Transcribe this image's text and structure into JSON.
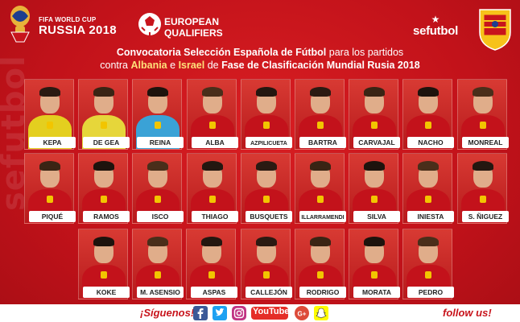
{
  "header": {
    "wc_line1": "FIFA WORLD CUP",
    "wc_line2": "RUSSIA 2018",
    "eq_line1": "EUROPEAN",
    "eq_line2": "QUALIFIERS",
    "brand": "sefutbol",
    "crest_text": "RFEF"
  },
  "title": {
    "l1_part1": "Convocatoria Selección Española de Fútbol",
    "l1_part2": "para los partidos",
    "l2_part1": "contra",
    "l2_part2": "Albania",
    "l2_part3": "e",
    "l2_part4": "Israel",
    "l2_part5": "de",
    "l2_part6": "Fase de Clasificación Mundial Rusia 2018"
  },
  "watermark": "sefutbol",
  "players": {
    "row1": [
      "KEPA",
      "DE GEA",
      "REINA",
      "ALBA",
      "AZPILICUETA",
      "BARTRA",
      "CARVAJAL",
      "NACHO",
      "MONREAL"
    ],
    "row2": [
      "PIQUÉ",
      "RAMOS",
      "ISCO",
      "THIAGO",
      "BUSQUETS",
      "ILLARRAMENDI",
      "SILVA",
      "INIESTA",
      "S. ÑIGUEZ"
    ],
    "row3": [
      "KOKE",
      "M. ASENSIO",
      "ASPAS",
      "CALLEJÓN",
      "RODRIGO",
      "MORATA",
      "PEDRO"
    ]
  },
  "footer": {
    "follow_es": "¡Síguenos!",
    "follow_en": "follow us!",
    "youtube": "YouTube",
    "icons": [
      "facebook-icon",
      "twitter-icon",
      "instagram-icon",
      "youtube-icon",
      "google-plus-icon",
      "snapchat-icon"
    ]
  },
  "colors": {
    "background": "#c8141c",
    "accent_yellow": "#ffe07a",
    "spain_red": "#c60b1e",
    "spain_yellow": "#ffc400"
  }
}
